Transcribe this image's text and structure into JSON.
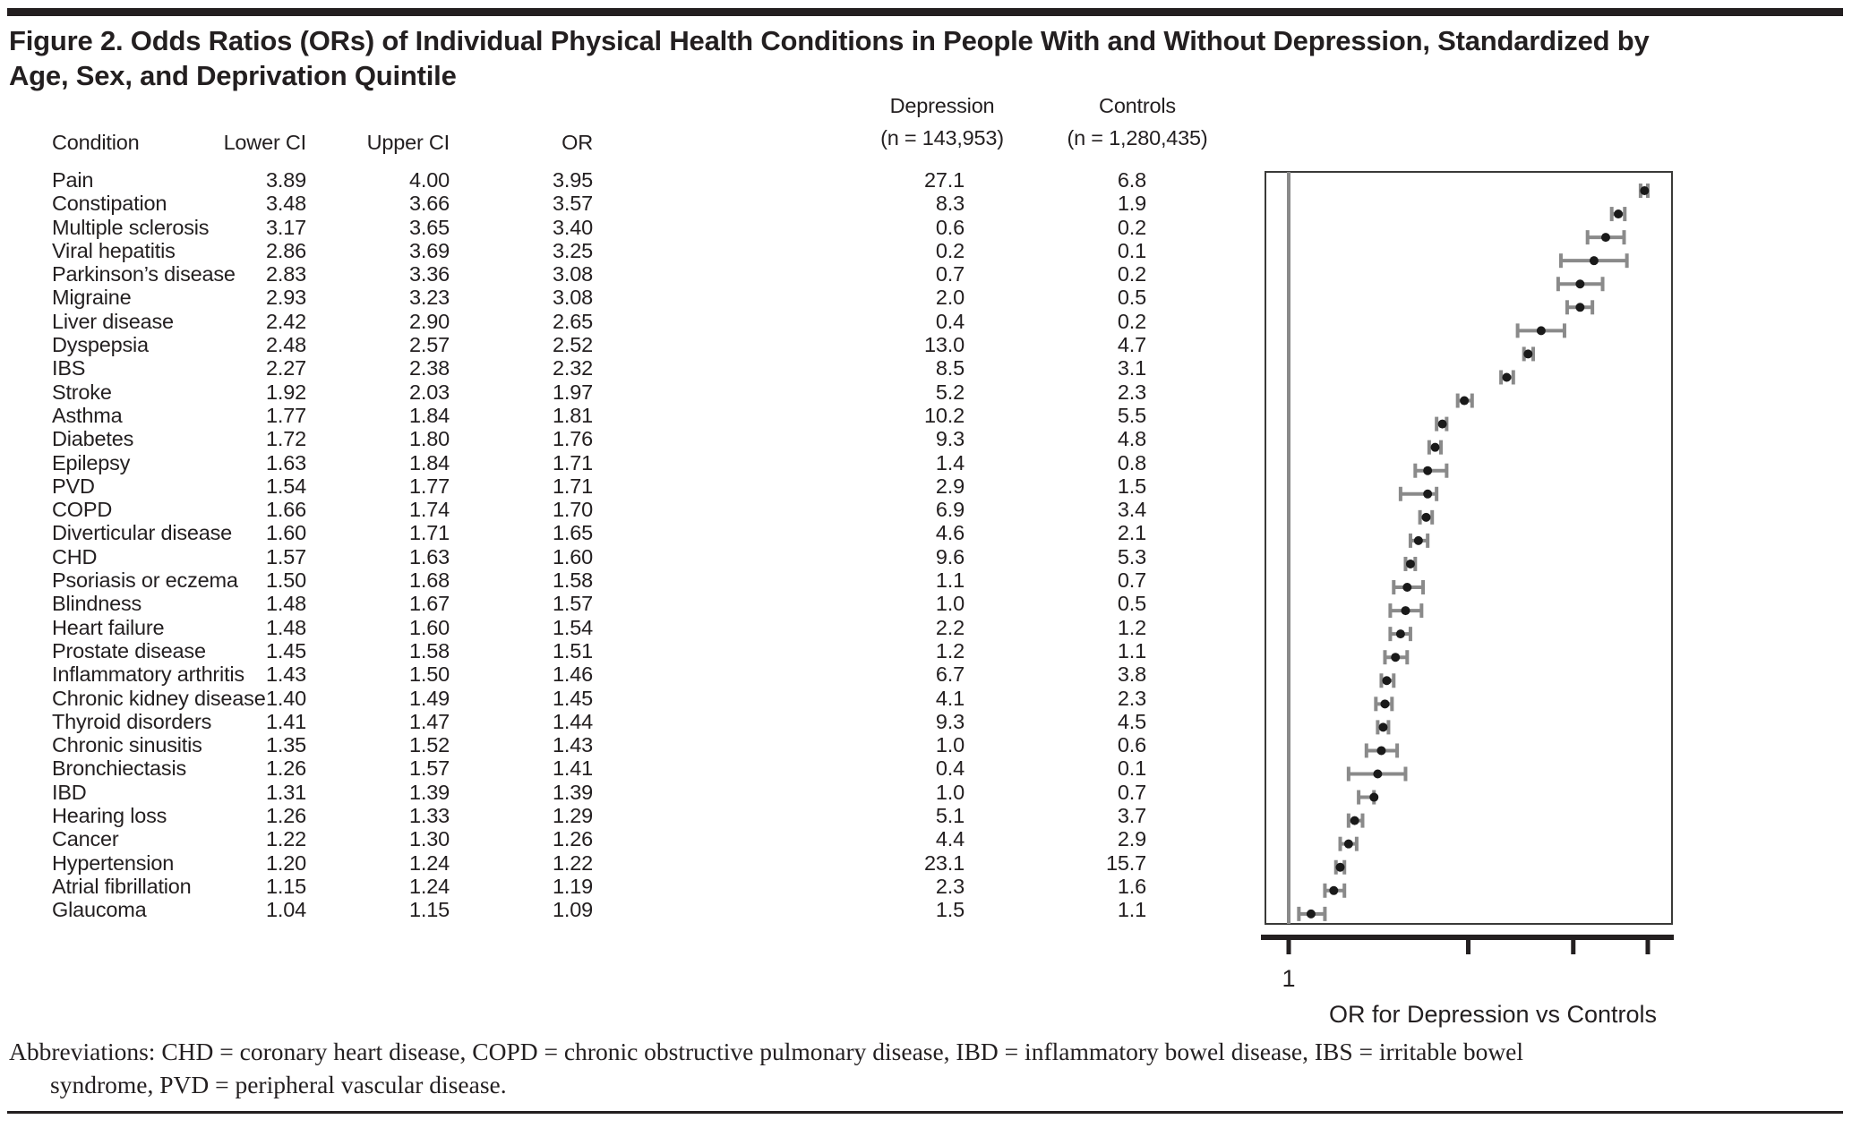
{
  "figure": {
    "title_line1": "Figure 2. Odds Ratios (ORs) of Individual Physical Health Conditions in People With and Without Depression, Standardized by",
    "title_line2": "Age, Sex, and Deprivation Quintile"
  },
  "table": {
    "headers": {
      "condition": "Condition",
      "lower_ci": "Lower CI",
      "upper_ci": "Upper CI",
      "or": "OR",
      "depression": "Depression",
      "depression_n": "(n = 143,953)",
      "controls": "Controls",
      "controls_n": "(n = 1,280,435)"
    },
    "rows": [
      {
        "condition": "Pain",
        "lower_ci": "3.89",
        "upper_ci": "4.00",
        "or": "3.95",
        "depression": "27.1",
        "controls": "6.8"
      },
      {
        "condition": "Constipation",
        "lower_ci": "3.48",
        "upper_ci": "3.66",
        "or": "3.57",
        "depression": "8.3",
        "controls": "1.9"
      },
      {
        "condition": "Multiple sclerosis",
        "lower_ci": "3.17",
        "upper_ci": "3.65",
        "or": "3.40",
        "depression": "0.6",
        "controls": "0.2"
      },
      {
        "condition": "Viral hepatitis",
        "lower_ci": "2.86",
        "upper_ci": "3.69",
        "or": "3.25",
        "depression": "0.2",
        "controls": "0.1"
      },
      {
        "condition": "Parkinson’s disease",
        "lower_ci": "2.83",
        "upper_ci": "3.36",
        "or": "3.08",
        "depression": "0.7",
        "controls": "0.2"
      },
      {
        "condition": "Migraine",
        "lower_ci": "2.93",
        "upper_ci": "3.23",
        "or": "3.08",
        "depression": "2.0",
        "controls": "0.5"
      },
      {
        "condition": "Liver disease",
        "lower_ci": "2.42",
        "upper_ci": "2.90",
        "or": "2.65",
        "depression": "0.4",
        "controls": "0.2"
      },
      {
        "condition": "Dyspepsia",
        "lower_ci": "2.48",
        "upper_ci": "2.57",
        "or": "2.52",
        "depression": "13.0",
        "controls": "4.7"
      },
      {
        "condition": "IBS",
        "lower_ci": "2.27",
        "upper_ci": "2.38",
        "or": "2.32",
        "depression": "8.5",
        "controls": "3.1"
      },
      {
        "condition": "Stroke",
        "lower_ci": "1.92",
        "upper_ci": "2.03",
        "or": "1.97",
        "depression": "5.2",
        "controls": "2.3"
      },
      {
        "condition": "Asthma",
        "lower_ci": "1.77",
        "upper_ci": "1.84",
        "or": "1.81",
        "depression": "10.2",
        "controls": "5.5"
      },
      {
        "condition": "Diabetes",
        "lower_ci": "1.72",
        "upper_ci": "1.80",
        "or": "1.76",
        "depression": "9.3",
        "controls": "4.8"
      },
      {
        "condition": "Epilepsy",
        "lower_ci": "1.63",
        "upper_ci": "1.84",
        "or": "1.71",
        "depression": "1.4",
        "controls": "0.8"
      },
      {
        "condition": "PVD",
        "lower_ci": "1.54",
        "upper_ci": "1.77",
        "or": "1.71",
        "depression": "2.9",
        "controls": "1.5"
      },
      {
        "condition": "COPD",
        "lower_ci": "1.66",
        "upper_ci": "1.74",
        "or": "1.70",
        "depression": "6.9",
        "controls": "3.4"
      },
      {
        "condition": "Diverticular disease",
        "lower_ci": "1.60",
        "upper_ci": "1.71",
        "or": "1.65",
        "depression": "4.6",
        "controls": "2.1"
      },
      {
        "condition": "CHD",
        "lower_ci": "1.57",
        "upper_ci": "1.63",
        "or": "1.60",
        "depression": "9.6",
        "controls": "5.3"
      },
      {
        "condition": "Psoriasis or eczema",
        "lower_ci": "1.50",
        "upper_ci": "1.68",
        "or": "1.58",
        "depression": "1.1",
        "controls": "0.7"
      },
      {
        "condition": "Blindness",
        "lower_ci": "1.48",
        "upper_ci": "1.67",
        "or": "1.57",
        "depression": "1.0",
        "controls": "0.5"
      },
      {
        "condition": "Heart failure",
        "lower_ci": "1.48",
        "upper_ci": "1.60",
        "or": "1.54",
        "depression": "2.2",
        "controls": "1.2"
      },
      {
        "condition": "Prostate disease",
        "lower_ci": "1.45",
        "upper_ci": "1.58",
        "or": "1.51",
        "depression": "1.2",
        "controls": "1.1"
      },
      {
        "condition": "Inflammatory arthritis",
        "lower_ci": "1.43",
        "upper_ci": "1.50",
        "or": "1.46",
        "depression": "6.7",
        "controls": "3.8"
      },
      {
        "condition": "Chronic kidney disease",
        "lower_ci": "1.40",
        "upper_ci": "1.49",
        "or": "1.45",
        "depression": "4.1",
        "controls": "2.3"
      },
      {
        "condition": "Thyroid disorders",
        "lower_ci": "1.41",
        "upper_ci": "1.47",
        "or": "1.44",
        "depression": "9.3",
        "controls": "4.5"
      },
      {
        "condition": "Chronic sinusitis",
        "lower_ci": "1.35",
        "upper_ci": "1.52",
        "or": "1.43",
        "depression": "1.0",
        "controls": "0.6"
      },
      {
        "condition": "Bronchiectasis",
        "lower_ci": "1.26",
        "upper_ci": "1.57",
        "or": "1.41",
        "depression": "0.4",
        "controls": "0.1"
      },
      {
        "condition": "IBD",
        "lower_ci": "1.31",
        "upper_ci": "1.39",
        "or": "1.39",
        "depression": "1.0",
        "controls": "0.7"
      },
      {
        "condition": "Hearing loss",
        "lower_ci": "1.26",
        "upper_ci": "1.33",
        "or": "1.29",
        "depression": "5.1",
        "controls": "3.7"
      },
      {
        "condition": "Cancer",
        "lower_ci": "1.22",
        "upper_ci": "1.30",
        "or": "1.26",
        "depression": "4.4",
        "controls": "2.9"
      },
      {
        "condition": "Hypertension",
        "lower_ci": "1.20",
        "upper_ci": "1.24",
        "or": "1.22",
        "depression": "23.1",
        "controls": "15.7"
      },
      {
        "condition": "Atrial fibrillation",
        "lower_ci": "1.15",
        "upper_ci": "1.24",
        "or": "1.19",
        "depression": "2.3",
        "controls": "1.6"
      },
      {
        "condition": "Glaucoma",
        "lower_ci": "1.04",
        "upper_ci": "1.15",
        "or": "1.09",
        "depression": "1.5",
        "controls": "1.1"
      }
    ]
  },
  "chart_data": {
    "type": "scatter",
    "variant": "forest-plot",
    "title": "",
    "xlabel": "OR for Depression vs Controls",
    "ylabel": "",
    "x_scale": "log",
    "xlim": [
      0.91,
      4.4
    ],
    "x_ticks": [
      1,
      2,
      3,
      4
    ],
    "x_tick_labels": [
      "1",
      "",
      "",
      ""
    ],
    "reference_line_x": 1,
    "grid": false,
    "legend": "none",
    "categories": [
      "Pain",
      "Constipation",
      "Multiple sclerosis",
      "Viral hepatitis",
      "Parkinson’s disease",
      "Migraine",
      "Liver disease",
      "Dyspepsia",
      "IBS",
      "Stroke",
      "Asthma",
      "Diabetes",
      "Epilepsy",
      "PVD",
      "COPD",
      "Diverticular disease",
      "CHD",
      "Psoriasis or eczema",
      "Blindness",
      "Heart failure",
      "Prostate disease",
      "Inflammatory arthritis",
      "Chronic kidney disease",
      "Thyroid disorders",
      "Chronic sinusitis",
      "Bronchiectasis",
      "IBD",
      "Hearing loss",
      "Cancer",
      "Hypertension",
      "Atrial fibrillation",
      "Glaucoma"
    ],
    "series": [
      {
        "name": "OR",
        "values": [
          3.95,
          3.57,
          3.4,
          3.25,
          3.08,
          3.08,
          2.65,
          2.52,
          2.32,
          1.97,
          1.81,
          1.76,
          1.71,
          1.71,
          1.7,
          1.65,
          1.6,
          1.58,
          1.57,
          1.54,
          1.51,
          1.46,
          1.45,
          1.44,
          1.43,
          1.41,
          1.39,
          1.29,
          1.26,
          1.22,
          1.19,
          1.09
        ]
      },
      {
        "name": "Lower CI",
        "values": [
          3.89,
          3.48,
          3.17,
          2.86,
          2.83,
          2.93,
          2.42,
          2.48,
          2.27,
          1.92,
          1.77,
          1.72,
          1.63,
          1.54,
          1.66,
          1.6,
          1.57,
          1.5,
          1.48,
          1.48,
          1.45,
          1.43,
          1.4,
          1.41,
          1.35,
          1.26,
          1.31,
          1.26,
          1.22,
          1.2,
          1.15,
          1.04
        ]
      },
      {
        "name": "Upper CI",
        "values": [
          4.0,
          3.66,
          3.65,
          3.69,
          3.36,
          3.23,
          2.9,
          2.57,
          2.38,
          2.03,
          1.84,
          1.8,
          1.84,
          1.77,
          1.74,
          1.71,
          1.63,
          1.68,
          1.67,
          1.6,
          1.58,
          1.5,
          1.49,
          1.47,
          1.52,
          1.57,
          1.39,
          1.33,
          1.3,
          1.24,
          1.24,
          1.15
        ]
      }
    ]
  },
  "footnote": {
    "line1": "Abbreviations: CHD = coronary heart disease, COPD = chronic obstructive pulmonary disease, IBD = inflammatory bowel disease, IBS = irritable bowel",
    "line2": "syndrome, PVD = peripheral vascular disease."
  },
  "colors": {
    "text": "#231f20",
    "rule": "#231f20",
    "plot_border": "#3a3a38",
    "reference_line": "#8a8a8a",
    "error_bar": "#8a8a8a",
    "point": "#1a1a1a",
    "axis": "#231f20"
  }
}
